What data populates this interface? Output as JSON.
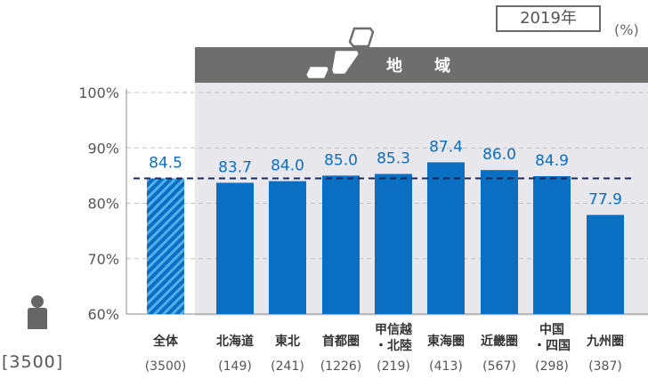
{
  "year_badge": "2019年",
  "unit": "(%)",
  "region_header": "地　　域",
  "total_respondents": "[3500]",
  "colors": {
    "bar": "#0a6fc2",
    "bar_total_stripe": "#3aa0e3",
    "label": "#0a6fc2",
    "header": "#6e6e6e",
    "region_bg": "#e7e7ec",
    "reference_line": "#1c2a5a"
  },
  "chart_data": {
    "type": "bar",
    "title": "",
    "xlabel": "",
    "ylabel": "",
    "ylim": [
      60,
      100
    ],
    "yticks": [
      "60%",
      "70%",
      "80%",
      "90%",
      "100%"
    ],
    "grid": true,
    "reference_line": 84.5,
    "categories": [
      {
        "lines": [
          "全体"
        ],
        "n": "(3500)"
      },
      {
        "lines": [
          "北海道"
        ],
        "n": "(149)"
      },
      {
        "lines": [
          "東北"
        ],
        "n": "(241)"
      },
      {
        "lines": [
          "首都圏"
        ],
        "n": "(1226)"
      },
      {
        "lines": [
          "甲信越",
          "・北陸"
        ],
        "n": "(219)"
      },
      {
        "lines": [
          "東海圏"
        ],
        "n": "(413)"
      },
      {
        "lines": [
          "近畿圏"
        ],
        "n": "(567)"
      },
      {
        "lines": [
          "中国",
          "・四国"
        ],
        "n": "(298)"
      },
      {
        "lines": [
          "九州圏"
        ],
        "n": "(387)"
      }
    ],
    "values": [
      84.5,
      83.7,
      84.0,
      85.0,
      85.3,
      87.4,
      86.0,
      84.9,
      77.9
    ],
    "value_labels": [
      "84.5",
      "83.7",
      "84.0",
      "85.0",
      "85.3",
      "87.4",
      "86.0",
      "84.9",
      "77.9"
    ]
  }
}
